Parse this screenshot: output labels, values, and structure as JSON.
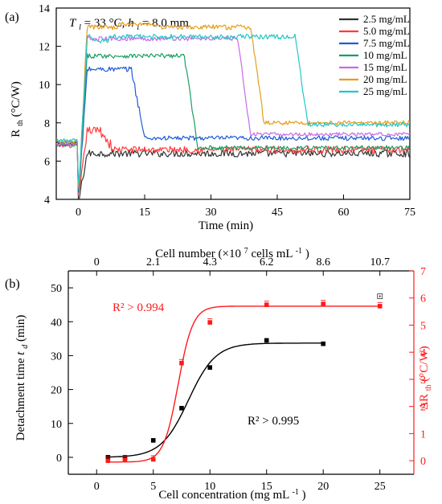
{
  "chart_data": [
    {
      "panel_label": "(a)",
      "type": "line",
      "annotation": {
        "parts": [
          "T",
          "l",
          " = 33 °C, ",
          "h",
          "l",
          " = 8.0 mm"
        ]
      },
      "xlabel": "Time (min)",
      "ylabel": {
        "base": "R",
        "sub": "th",
        "rest": " (°C/W)"
      },
      "xlim": [
        -5,
        75
      ],
      "ylim": [
        4,
        14
      ],
      "x_ticks": [
        0,
        15,
        30,
        45,
        60,
        75
      ],
      "y_ticks": [
        4,
        6,
        8,
        10,
        12,
        14
      ],
      "grid": false,
      "legend_position": "top-right",
      "series": [
        {
          "name": "2.5 mg/mL",
          "color": "#333333",
          "baseline": 6.9,
          "dip_low": 4.0,
          "plateau": 6.4,
          "plateau_end_x": 75,
          "final": 6.4,
          "noise": 0.22
        },
        {
          "name": "5.0 mg/mL",
          "color": "#ff3b3b",
          "baseline": 6.8,
          "dip_low": 4.2,
          "plateau": 7.6,
          "plateau_end_x": 5,
          "final": 6.6,
          "noise": 0.24
        },
        {
          "name": "7.5 mg/mL",
          "color": "#1f5cd6",
          "baseline": 7.0,
          "dip_low": 4.3,
          "plateau": 10.8,
          "plateau_end_x": 12,
          "final": 7.2,
          "noise": 0.16
        },
        {
          "name": "10 mg/mL",
          "color": "#1a9e63",
          "baseline": 6.8,
          "dip_low": 4.4,
          "plateau": 11.5,
          "plateau_end_x": 24,
          "final": 6.7,
          "noise": 0.14
        },
        {
          "name": "15 mg/mL",
          "color": "#c86be6",
          "baseline": 6.9,
          "dip_low": 4.5,
          "plateau": 12.4,
          "plateau_end_x": 36,
          "final": 7.4,
          "noise": 0.13
        },
        {
          "name": "20 mg/mL",
          "color": "#e59d1b",
          "baseline": 7.0,
          "dip_low": 4.6,
          "plateau": 13.0,
          "plateau_end_x": 39,
          "final": 8.0,
          "noise": 0.15
        },
        {
          "name": "25 mg/mL",
          "color": "#23c7c7",
          "baseline": 7.1,
          "dip_low": 4.7,
          "plateau": 12.5,
          "plateau_end_x": 49,
          "final": 7.9,
          "noise": 0.15
        }
      ]
    },
    {
      "panel_label": "(b)",
      "type": "scatter",
      "xlabel": {
        "text": "Cell concentration (mg mL",
        "sup": "-1",
        "close": ")"
      },
      "ylabel_left": {
        "pre": "Detachment time ",
        "italic": "t",
        "sub": "d",
        "post": " (min)"
      },
      "ylabel_right": {
        "pre": "ΔR",
        "sub": "th",
        "post": " (°C/W)"
      },
      "top_axis_label": {
        "text": "Cell number (×10",
        "sup1": "7",
        "text2": " cells mL",
        "sup2": "-1",
        "close": ")"
      },
      "xlim": [
        -2.5,
        28
      ],
      "ylim_left": [
        -5,
        55
      ],
      "ylim_right": [
        -0.5,
        7
      ],
      "x_ticks": [
        0,
        5,
        10,
        15,
        20,
        25
      ],
      "y_ticks_left": [
        0,
        10,
        20,
        30,
        40,
        50
      ],
      "y_ticks_right": [
        0,
        1,
        2,
        3,
        4,
        5,
        6,
        7
      ],
      "top_ticks": [
        {
          "x": 0,
          "label": "0"
        },
        {
          "x": 5,
          "label": "2.1"
        },
        {
          "x": 10,
          "label": "4.3"
        },
        {
          "x": 15,
          "label": "6.2"
        },
        {
          "x": 20,
          "label": "8.6"
        },
        {
          "x": 25,
          "label": "10.7"
        }
      ],
      "left_axis_color": "#000000",
      "right_axis_color": "#ff1a1a",
      "black_series": {
        "color": "#000000",
        "points": [
          {
            "x": 1.0,
            "y": 0.0
          },
          {
            "x": 2.5,
            "y": 0.0
          },
          {
            "x": 5.0,
            "y": 5.0
          },
          {
            "x": 7.5,
            "y": 14.5
          },
          {
            "x": 10.0,
            "y": 26.5
          },
          {
            "x": 15.0,
            "y": 34.5
          },
          {
            "x": 20.0,
            "y": 33.5
          }
        ],
        "fit": {
          "A1": 0.0,
          "A2": 33.7,
          "x0": 8.1,
          "dx": 1.2,
          "x_range": [
            1.0,
            20.0
          ]
        },
        "r2_label": "R² > 0.995",
        "open_marker": {
          "x": 25.0,
          "y": 47.5
        }
      },
      "red_series": {
        "color": "#ff1a1a",
        "points": [
          {
            "x": 1.0,
            "y": 0.0
          },
          {
            "x": 2.5,
            "y": 0.03
          },
          {
            "x": 5.0,
            "y": 0.05
          },
          {
            "x": 7.5,
            "y": 3.6
          },
          {
            "x": 10.0,
            "y": 5.1
          },
          {
            "x": 15.0,
            "y": 5.75
          },
          {
            "x": 20.0,
            "y": 5.78
          },
          {
            "x": 25.0,
            "y": 5.7
          }
        ],
        "fit": {
          "A1": -0.05,
          "A2": 5.7,
          "x0": 7.2,
          "dx": 0.65,
          "x_range": [
            1.0,
            25.0
          ]
        },
        "r2_label": "R² > 0.994"
      }
    }
  ]
}
